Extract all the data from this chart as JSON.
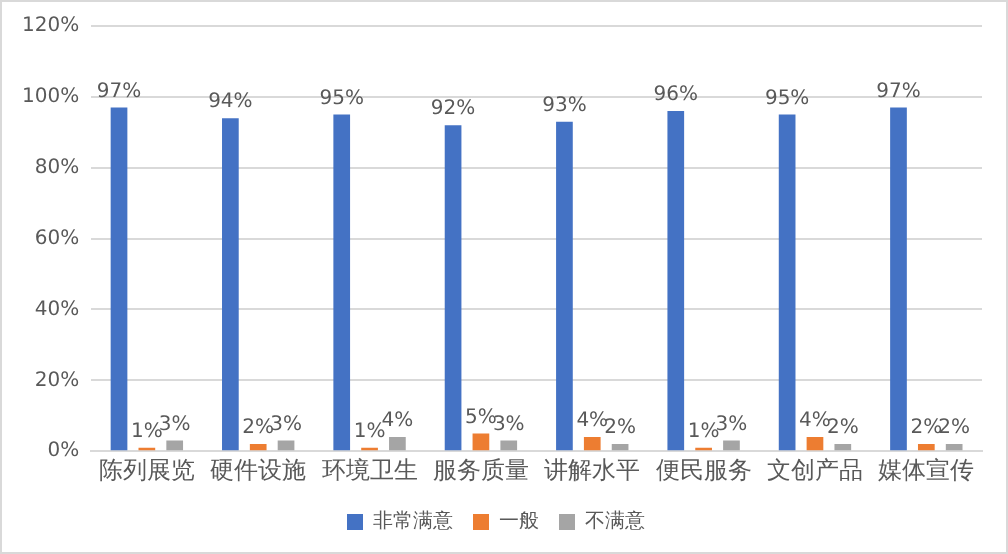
{
  "chart_data": {
    "type": "bar",
    "categories": [
      "陈列展览",
      "硬件设施",
      "环境卫生",
      "服务质量",
      "讲解水平",
      "便民服务",
      "文创产品",
      "媒体宣传"
    ],
    "series": [
      {
        "name": "非常满意",
        "color": "#4472c4",
        "values": [
          97,
          94,
          95,
          92,
          93,
          96,
          95,
          97
        ],
        "value_labels": [
          "97%",
          "94%",
          "95%",
          "92%",
          "93%",
          "96%",
          "95%",
          "97%"
        ]
      },
      {
        "name": "一般",
        "color": "#ed7d31",
        "values": [
          1,
          2,
          1,
          5,
          4,
          1,
          4,
          2
        ],
        "value_labels": [
          "1%",
          "2%",
          "1%",
          "5%",
          "4%",
          "1%",
          "4%",
          "2%"
        ]
      },
      {
        "name": "不满意",
        "color": "#a5a5a5",
        "values": [
          3,
          3,
          4,
          3,
          2,
          3,
          2,
          2
        ],
        "value_labels": [
          "3%",
          "3%",
          "4%",
          "3%",
          "2%",
          "3%",
          "2%",
          "2%"
        ]
      }
    ],
    "ylim": [
      0,
      120
    ],
    "yticks": [
      {
        "value": 0,
        "label": "0%"
      },
      {
        "value": 20,
        "label": "20%"
      },
      {
        "value": 40,
        "label": "40%"
      },
      {
        "value": 60,
        "label": "60%"
      },
      {
        "value": 80,
        "label": "80%"
      },
      {
        "value": 100,
        "label": "100%"
      },
      {
        "value": 120,
        "label": "120%"
      }
    ],
    "grid": "y",
    "legend": "bottom"
  }
}
